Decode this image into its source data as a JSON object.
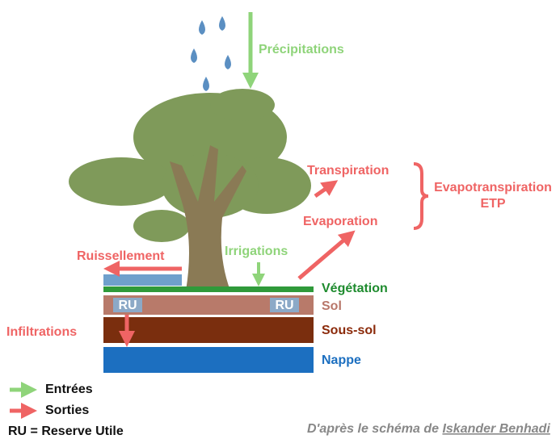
{
  "diagram": {
    "precipitation": "Précipitations",
    "transpiration": "Transpiration",
    "evapotranspiration": [
      "Evapotranspiration",
      "ETP"
    ],
    "evaporation": "Evaporation",
    "irrigation": "Irrigations",
    "runoff": "Ruissellement",
    "infiltration": "Infiltrations",
    "layers": {
      "vegetation": "Végétation",
      "soil": "Sol",
      "subsoil": "Sous-sol",
      "aquifer": "Nappe"
    },
    "ru_boxes": [
      "RU",
      "RU"
    ]
  },
  "legend": {
    "inputs": "Entrées",
    "outputs": "Sorties",
    "ru": "RU = Reserve Utile"
  },
  "credit": {
    "text": "D'après le schéma de",
    "author": "Iskander Benhadi"
  }
}
